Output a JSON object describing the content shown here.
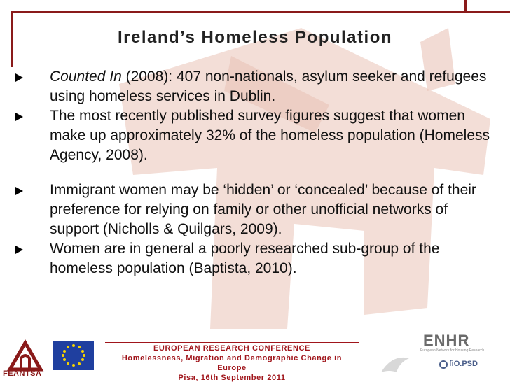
{
  "slide": {
    "title": "Ireland’s Homeless Population",
    "bullets": [
      {
        "italic": "Counted In",
        "text": " (2008): 407 non-nationals, asylum seeker and refugees using homeless services in Dublin."
      },
      {
        "text": "The most recently published survey figures suggest that women make up approximately 32% of the homeless population (Homeless Agency, 2008)."
      },
      {
        "text": "Immigrant women may be ‘hidden’ or ‘concealed’ because of their preference for relying on family or other unofficial networks of support (Nicholls & Quilgars, 2009)."
      },
      {
        "text": "Women are in general a poorly researched sub-group of the homeless population (Baptista, 2010)."
      }
    ]
  },
  "footer": {
    "line1": "EUROPEAN RESEARCH CONFERENCE",
    "line2": "Homelessness, Migration and Demographic Change in",
    "line3": "Europe",
    "line4": "Pisa, 16th September 2011"
  },
  "logos": {
    "feantsa": "FEANTSA",
    "enhr": "ENHR",
    "enhr_subtitle": "European Network for Housing Research",
    "fio": "fiO.PSD"
  },
  "colors": {
    "accent": "#a0151b",
    "frame": "#8a1a1a",
    "watermark": "#efd3ca"
  }
}
